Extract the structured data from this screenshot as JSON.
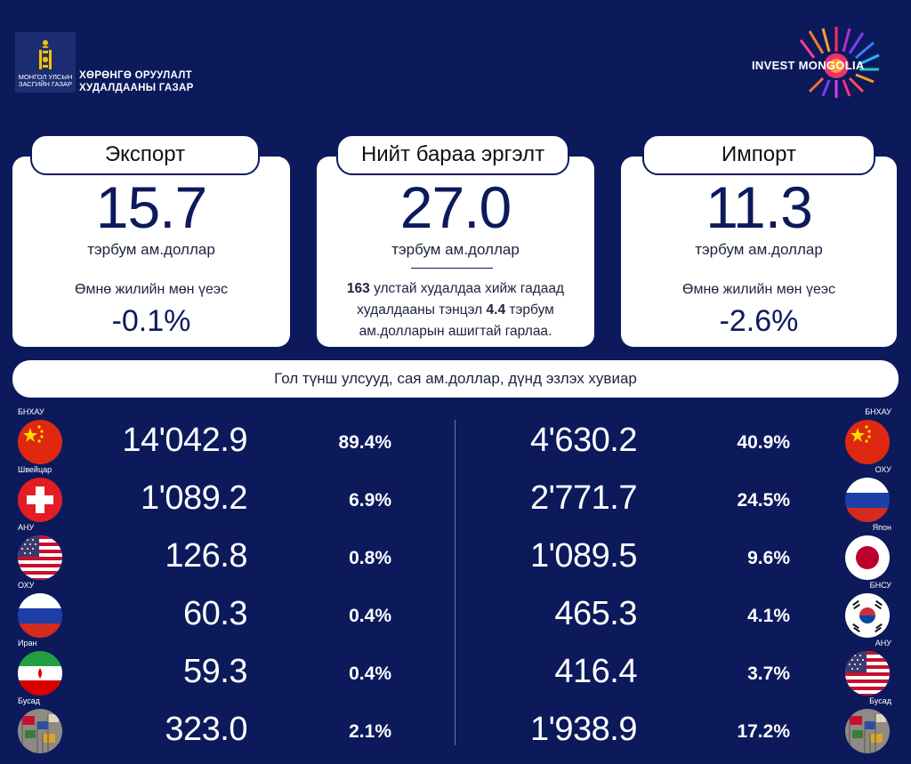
{
  "header": {
    "gov_logo_text": "МОНГОЛ УЛСЫН ЗАСГИЙН ГАЗАР",
    "org_line1": "ХӨРӨНГӨ ОРУУЛАЛТ",
    "org_line2": "ХУДАЛДААНЫ ГАЗАР",
    "brand_logo_text": "INVEST MONGOLIA"
  },
  "export": {
    "title": "Экспорт",
    "value": "15.7",
    "unit": "тэрбум ам.доллар",
    "prev_label": "Өмнө жилийн мөн үеэс",
    "prev_value": "-0.1%"
  },
  "total": {
    "title": "Нийт бараа эргэлт",
    "value": "27.0",
    "unit": "тэрбум ам.доллар",
    "note_pre": "163",
    "note_mid": " улстай худалдаа хийж гадаад худалдааны тэнцэл ",
    "note_num": "4.4",
    "note_post": " тэрбум ам.долларын ашигтай гарлаа."
  },
  "import": {
    "title": "Импорт",
    "value": "11.3",
    "unit": "тэрбум ам.доллар",
    "prev_label": "Өмнө жилийн мөн үеэс",
    "prev_value": "-2.6%"
  },
  "partners_title": "Гол түнш улсууд, сая ам.доллар, дүнд эзлэх хувиар",
  "export_partners": [
    {
      "country": "БНХАУ",
      "amount": "14'042.9",
      "share": "89.4%",
      "flag": "china-flag-icon"
    },
    {
      "country": "Швейцар",
      "amount": "1'089.2",
      "share": "6.9%",
      "flag": "switzerland-flag-icon"
    },
    {
      "country": "АНУ",
      "amount": "126.8",
      "share": "0.8%",
      "flag": "usa-flag-icon"
    },
    {
      "country": "ОХУ",
      "amount": "60.3",
      "share": "0.4%",
      "flag": "russia-flag-icon"
    },
    {
      "country": "Иран",
      "amount": "59.3",
      "share": "0.4%",
      "flag": "iran-flag-icon"
    },
    {
      "country": "Бусад",
      "amount": "323.0",
      "share": "2.1%",
      "flag": "world-flags-icon"
    }
  ],
  "import_partners": [
    {
      "country": "БНХАУ",
      "amount": "4'630.2",
      "share": "40.9%",
      "flag": "china-flag-icon"
    },
    {
      "country": "ОХУ",
      "amount": "2'771.7",
      "share": "24.5%",
      "flag": "russia-flag-icon"
    },
    {
      "country": "Япон",
      "amount": "1'089.5",
      "share": "9.6%",
      "flag": "japan-flag-icon"
    },
    {
      "country": "БНСУ",
      "amount": "465.3",
      "share": "4.1%",
      "flag": "korea-flag-icon"
    },
    {
      "country": "АНУ",
      "amount": "416.4",
      "share": "3.7%",
      "flag": "usa-flag-icon"
    },
    {
      "country": "Бусад",
      "amount": "1'938.9",
      "share": "17.2%",
      "flag": "world-flags-icon"
    }
  ],
  "colors": {
    "background": "#0c1a5c",
    "card": "#ffffff",
    "accent": "#0c1a5c"
  }
}
